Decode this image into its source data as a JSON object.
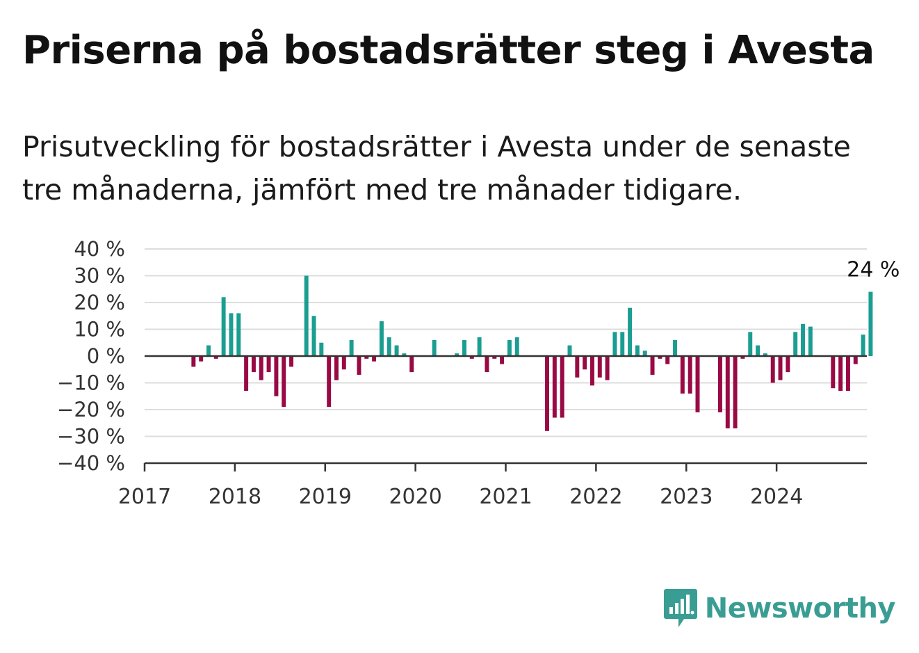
{
  "title": "Priserna på bostadsrätter steg i Avesta",
  "subtitle": "Prisutveckling för bostadsrätter i Avesta under de senaste tre månaderna, jämfört med tre månader tidigare.",
  "brand": "Newsworthy",
  "colors": {
    "positive": "#1a9e91",
    "negative": "#990a45",
    "grid": "#dddddd",
    "axis": "#333333",
    "brand": "#3a9d93"
  },
  "chart_data": {
    "type": "bar",
    "x_start": 2017,
    "x_end": 2025,
    "ylim": [
      -40,
      40
    ],
    "y_ticks": [
      "40 %",
      "30 %",
      "20 %",
      "10 %",
      "0 %",
      "−10 %",
      "−20 %",
      "−30 %",
      "−40 %"
    ],
    "x_ticks": [
      "2017",
      "2018",
      "2019",
      "2020",
      "2021",
      "2022",
      "2023",
      "2024"
    ],
    "annotation": {
      "label": "24 %",
      "value": 24
    },
    "values": [
      null,
      null,
      null,
      null,
      null,
      null,
      -4,
      -2,
      4,
      -1,
      22,
      16,
      16,
      -13,
      -6,
      -9,
      -6,
      -15,
      -19,
      -4,
      null,
      30,
      15,
      5,
      -19,
      -9,
      -5,
      6,
      -7,
      -1,
      -2,
      13,
      7,
      4,
      1,
      -6,
      null,
      null,
      6,
      null,
      null,
      1,
      6,
      -1,
      7,
      -6,
      -1,
      -3,
      6,
      7,
      null,
      null,
      null,
      -28,
      -23,
      -23,
      4,
      -8,
      -5,
      -11,
      -8,
      -9,
      9,
      9,
      18,
      4,
      2,
      -7,
      -1,
      -3,
      6,
      -14,
      -14,
      -21,
      null,
      null,
      -21,
      -27,
      -27,
      -1,
      9,
      4,
      1,
      -10,
      -9,
      -6,
      9,
      12,
      11,
      null,
      null,
      -12,
      -13,
      -13,
      -3,
      8,
      24
    ]
  }
}
